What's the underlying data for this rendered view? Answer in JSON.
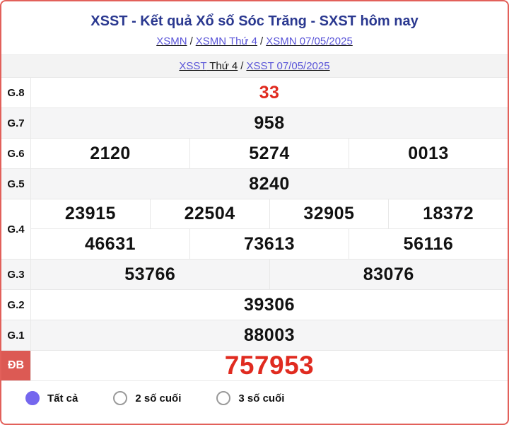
{
  "header": {
    "title": "XSST - Kết quả Xổ số Sóc Trăng - SXST hôm nay"
  },
  "breadcrumbs": {
    "separator": "/",
    "row1": [
      {
        "parts": [
          {
            "text": "XSMN",
            "style": "link"
          }
        ]
      },
      {
        "parts": [
          {
            "text": "XSMN Thứ 4",
            "style": "link"
          }
        ]
      },
      {
        "parts": [
          {
            "text": "XSMN 07/05/2025",
            "style": "link"
          }
        ]
      }
    ],
    "row2": [
      {
        "parts": [
          {
            "text": "XSST",
            "style": "link"
          },
          {
            "text": "Thứ 4",
            "style": "dark"
          }
        ]
      },
      {
        "parts": [
          {
            "text": "XSST 07/05/2025",
            "style": "link"
          }
        ]
      }
    ]
  },
  "table": {
    "rows": [
      {
        "prize": "G.8",
        "lines": [
          [
            "33"
          ]
        ],
        "red": true,
        "big": false,
        "db": false,
        "shade": false
      },
      {
        "prize": "G.7",
        "lines": [
          [
            "958"
          ]
        ],
        "red": false,
        "big": false,
        "db": false,
        "shade": true
      },
      {
        "prize": "G.6",
        "lines": [
          [
            "2120",
            "5274",
            "0013"
          ]
        ],
        "red": false,
        "big": false,
        "db": false,
        "shade": false
      },
      {
        "prize": "G.5",
        "lines": [
          [
            "8240"
          ]
        ],
        "red": false,
        "big": false,
        "db": false,
        "shade": true
      },
      {
        "prize": "G.4",
        "lines": [
          [
            "23915",
            "22504",
            "32905",
            "18372"
          ],
          [
            "46631",
            "73613",
            "56116"
          ]
        ],
        "red": false,
        "big": false,
        "db": false,
        "shade": false
      },
      {
        "prize": "G.3",
        "lines": [
          [
            "53766",
            "83076"
          ]
        ],
        "red": false,
        "big": false,
        "db": false,
        "shade": true
      },
      {
        "prize": "G.2",
        "lines": [
          [
            "39306"
          ]
        ],
        "red": false,
        "big": false,
        "db": false,
        "shade": false
      },
      {
        "prize": "G.1",
        "lines": [
          [
            "88003"
          ]
        ],
        "red": false,
        "big": false,
        "db": false,
        "shade": true
      },
      {
        "prize": "ĐB",
        "lines": [
          [
            "757953"
          ]
        ],
        "red": true,
        "big": true,
        "db": true,
        "shade": false
      }
    ]
  },
  "footer": {
    "options": [
      {
        "label": "Tất cả",
        "selected": true
      },
      {
        "label": "2 số cuối",
        "selected": false
      },
      {
        "label": "3 số cuối",
        "selected": false
      }
    ]
  },
  "colors": {
    "card_border": "#e2605a",
    "title": "#2b3990",
    "link": "#5a55d8",
    "accent_red": "#e02b20",
    "db_badge_bg": "#dc5a54",
    "radio_selected": "#7567ee",
    "row_shade": "#f5f5f6"
  }
}
